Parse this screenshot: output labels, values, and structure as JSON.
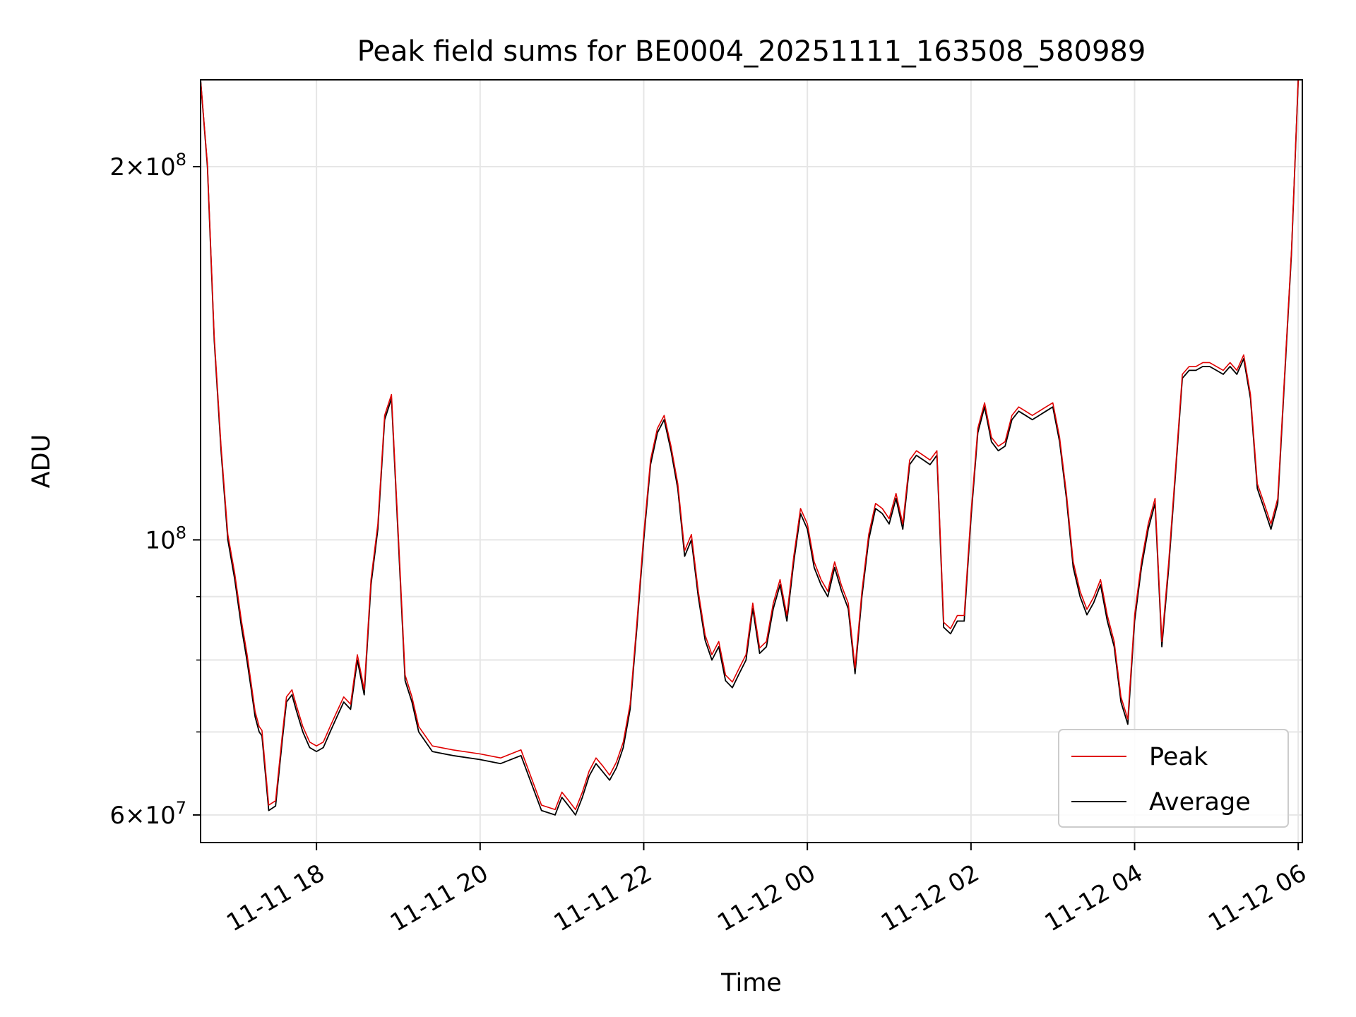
{
  "chart_data": {
    "type": "line",
    "title": "Peak field sums for BE0004_20251111_163508_580989",
    "xlabel": "Time",
    "ylabel": "ADU",
    "y_scale": "log",
    "ylim": [
      57000000,
      235000000
    ],
    "xlim": [
      "2025-11-11 16:35",
      "2025-11-12 06:03"
    ],
    "grid": true,
    "legend_position": "lower-right",
    "x_ticks": [
      {
        "value": "2025-11-11 18:00",
        "label": "11-11 18"
      },
      {
        "value": "2025-11-11 20:00",
        "label": "11-11 20"
      },
      {
        "value": "2025-11-11 22:00",
        "label": "11-11 22"
      },
      {
        "value": "2025-11-12 00:00",
        "label": "11-12 00"
      },
      {
        "value": "2025-11-12 02:00",
        "label": "11-12 02"
      },
      {
        "value": "2025-11-12 04:00",
        "label": "11-12 04"
      },
      {
        "value": "2025-11-12 06:00",
        "label": "11-12 06"
      }
    ],
    "y_major_ticks": [
      {
        "value": 200000000,
        "mantissa": "2",
        "exponent": "8"
      },
      {
        "value": 100000000,
        "mantissa": "",
        "exponent": "8"
      },
      {
        "value": 60000000,
        "mantissa": "6",
        "exponent": "7"
      }
    ],
    "y_minor_ticks": [
      70000000,
      80000000,
      90000000
    ],
    "series": [
      {
        "name": "Average",
        "color": "#000000",
        "x": [
          "2025-11-11 16:35",
          "2025-11-11 16:40",
          "2025-11-11 16:45",
          "2025-11-11 16:50",
          "2025-11-11 16:55",
          "2025-11-11 17:00",
          "2025-11-11 17:05",
          "2025-11-11 17:09",
          "2025-11-11 17:12",
          "2025-11-11 17:15",
          "2025-11-11 17:18",
          "2025-11-11 17:20",
          "2025-11-11 17:25",
          "2025-11-11 17:30",
          "2025-11-11 17:35",
          "2025-11-11 17:38",
          "2025-11-11 17:42",
          "2025-11-11 17:45",
          "2025-11-11 17:50",
          "2025-11-11 17:55",
          "2025-11-11 18:00",
          "2025-11-11 18:05",
          "2025-11-11 18:10",
          "2025-11-11 18:15",
          "2025-11-11 18:20",
          "2025-11-11 18:25",
          "2025-11-11 18:30",
          "2025-11-11 18:35",
          "2025-11-11 18:40",
          "2025-11-11 18:45",
          "2025-11-11 18:50",
          "2025-11-11 18:55",
          "2025-11-11 19:00",
          "2025-11-11 19:05",
          "2025-11-11 19:10",
          "2025-11-11 19:15",
          "2025-11-11 19:25",
          "2025-11-11 19:40",
          "2025-11-11 20:00",
          "2025-11-11 20:15",
          "2025-11-11 20:30",
          "2025-11-11 20:45",
          "2025-11-11 20:55",
          "2025-11-11 21:00",
          "2025-11-11 21:05",
          "2025-11-11 21:10",
          "2025-11-11 21:15",
          "2025-11-11 21:20",
          "2025-11-11 21:25",
          "2025-11-11 21:30",
          "2025-11-11 21:35",
          "2025-11-11 21:40",
          "2025-11-11 21:45",
          "2025-11-11 21:50",
          "2025-11-11 21:55",
          "2025-11-11 22:00",
          "2025-11-11 22:05",
          "2025-11-11 22:10",
          "2025-11-11 22:15",
          "2025-11-11 22:20",
          "2025-11-11 22:25",
          "2025-11-11 22:30",
          "2025-11-11 22:35",
          "2025-11-11 22:40",
          "2025-11-11 22:45",
          "2025-11-11 22:50",
          "2025-11-11 22:55",
          "2025-11-11 23:00",
          "2025-11-11 23:05",
          "2025-11-11 23:10",
          "2025-11-11 23:15",
          "2025-11-11 23:20",
          "2025-11-11 23:25",
          "2025-11-11 23:30",
          "2025-11-11 23:35",
          "2025-11-11 23:40",
          "2025-11-11 23:45",
          "2025-11-11 23:50",
          "2025-11-11 23:55",
          "2025-11-12 00:00",
          "2025-11-12 00:05",
          "2025-11-12 00:10",
          "2025-11-12 00:15",
          "2025-11-12 00:20",
          "2025-11-12 00:25",
          "2025-11-12 00:30",
          "2025-11-12 00:35",
          "2025-11-12 00:40",
          "2025-11-12 00:45",
          "2025-11-12 00:50",
          "2025-11-12 00:55",
          "2025-11-12 01:00",
          "2025-11-12 01:05",
          "2025-11-12 01:10",
          "2025-11-12 01:15",
          "2025-11-12 01:20",
          "2025-11-12 01:25",
          "2025-11-12 01:30",
          "2025-11-12 01:35",
          "2025-11-12 01:40",
          "2025-11-12 01:45",
          "2025-11-12 01:50",
          "2025-11-12 01:55",
          "2025-11-12 02:00",
          "2025-11-12 02:05",
          "2025-11-12 02:10",
          "2025-11-12 02:15",
          "2025-11-12 02:20",
          "2025-11-12 02:25",
          "2025-11-12 02:30",
          "2025-11-12 02:35",
          "2025-11-12 02:40",
          "2025-11-12 02:45",
          "2025-11-12 02:50",
          "2025-11-12 02:55",
          "2025-11-12 03:00",
          "2025-11-12 03:05",
          "2025-11-12 03:10",
          "2025-11-12 03:15",
          "2025-11-12 03:20",
          "2025-11-12 03:25",
          "2025-11-12 03:30",
          "2025-11-12 03:35",
          "2025-11-12 03:40",
          "2025-11-12 03:45",
          "2025-11-12 03:50",
          "2025-11-12 03:55",
          "2025-11-12 04:00",
          "2025-11-12 04:05",
          "2025-11-12 04:10",
          "2025-11-12 04:15",
          "2025-11-12 04:20",
          "2025-11-12 04:25",
          "2025-11-12 04:30",
          "2025-11-12 04:35",
          "2025-11-12 04:40",
          "2025-11-12 04:45",
          "2025-11-12 04:50",
          "2025-11-12 04:55",
          "2025-11-12 05:00",
          "2025-11-12 05:05",
          "2025-11-12 05:10",
          "2025-11-12 05:15",
          "2025-11-12 05:20",
          "2025-11-12 05:25",
          "2025-11-12 05:30",
          "2025-11-12 05:35",
          "2025-11-12 05:40",
          "2025-11-12 05:45",
          "2025-11-12 05:50",
          "2025-11-12 05:55",
          "2025-11-12 06:00"
        ],
        "values": [
          235000000,
          200000000,
          145000000,
          118000000,
          100000000,
          93000000,
          85000000,
          80000000,
          76000000,
          72000000,
          70000000,
          69500000,
          60500000,
          61000000,
          69000000,
          74000000,
          75000000,
          73000000,
          70000000,
          68000000,
          67500000,
          68000000,
          70000000,
          72000000,
          74000000,
          73000000,
          80000000,
          75000000,
          92000000,
          102000000,
          125000000,
          130000000,
          100000000,
          77000000,
          74000000,
          70000000,
          67500000,
          67000000,
          66500000,
          66000000,
          67000000,
          60500000,
          60000000,
          62000000,
          61000000,
          60000000,
          62000000,
          64500000,
          66000000,
          65000000,
          64000000,
          65500000,
          68000000,
          73000000,
          85000000,
          100000000,
          115000000,
          122000000,
          125000000,
          118000000,
          110000000,
          97000000,
          100000000,
          90000000,
          83000000,
          80000000,
          82000000,
          77000000,
          76000000,
          78000000,
          80000000,
          88000000,
          81000000,
          82000000,
          88000000,
          92000000,
          86000000,
          96000000,
          105000000,
          102000000,
          95000000,
          92000000,
          90000000,
          95000000,
          91000000,
          88000000,
          78000000,
          90000000,
          100000000,
          106000000,
          105000000,
          103000000,
          108000000,
          102000000,
          115000000,
          117000000,
          116000000,
          115000000,
          117000000,
          85000000,
          84000000,
          86000000,
          86000000,
          104000000,
          122000000,
          128000000,
          120000000,
          118000000,
          119000000,
          125000000,
          127000000,
          126000000,
          125000000,
          126000000,
          127000000,
          128000000,
          120000000,
          108000000,
          95000000,
          90000000,
          87000000,
          89000000,
          92000000,
          86000000,
          82000000,
          74000000,
          71000000,
          86000000,
          95000000,
          102000000,
          107000000,
          82000000,
          95000000,
          113000000,
          135000000,
          137000000,
          137000000,
          138000000,
          138000000,
          137000000,
          136000000,
          138000000,
          136000000,
          140000000,
          130000000,
          110000000,
          106000000,
          102000000,
          107000000,
          135000000,
          170000000,
          235000000
        ]
      },
      {
        "name": "Peak",
        "color": "#e00000",
        "x": [
          "2025-11-11 16:35",
          "2025-11-11 16:40",
          "2025-11-11 16:45",
          "2025-11-11 16:50",
          "2025-11-11 16:55",
          "2025-11-11 17:00",
          "2025-11-11 17:05",
          "2025-11-11 17:09",
          "2025-11-11 17:12",
          "2025-11-11 17:15",
          "2025-11-11 17:18",
          "2025-11-11 17:20",
          "2025-11-11 17:25",
          "2025-11-11 17:30",
          "2025-11-11 17:35",
          "2025-11-11 17:38",
          "2025-11-11 17:42",
          "2025-11-11 17:45",
          "2025-11-11 17:50",
          "2025-11-11 17:55",
          "2025-11-11 18:00",
          "2025-11-11 18:05",
          "2025-11-11 18:10",
          "2025-11-11 18:15",
          "2025-11-11 18:20",
          "2025-11-11 18:25",
          "2025-11-11 18:30",
          "2025-11-11 18:35",
          "2025-11-11 18:40",
          "2025-11-11 18:45",
          "2025-11-11 18:50",
          "2025-11-11 18:55",
          "2025-11-11 19:00",
          "2025-11-11 19:05",
          "2025-11-11 19:10",
          "2025-11-11 19:15",
          "2025-11-11 19:25",
          "2025-11-11 19:40",
          "2025-11-11 20:00",
          "2025-11-11 20:15",
          "2025-11-11 20:30",
          "2025-11-11 20:45",
          "2025-11-11 20:55",
          "2025-11-11 21:00",
          "2025-11-11 21:05",
          "2025-11-11 21:10",
          "2025-11-11 21:15",
          "2025-11-11 21:20",
          "2025-11-11 21:25",
          "2025-11-11 21:30",
          "2025-11-11 21:35",
          "2025-11-11 21:40",
          "2025-11-11 21:45",
          "2025-11-11 21:50",
          "2025-11-11 21:55",
          "2025-11-11 22:00",
          "2025-11-11 22:05",
          "2025-11-11 22:10",
          "2025-11-11 22:15",
          "2025-11-11 22:20",
          "2025-11-11 22:25",
          "2025-11-11 22:30",
          "2025-11-11 22:35",
          "2025-11-11 22:40",
          "2025-11-11 22:45",
          "2025-11-11 22:50",
          "2025-11-11 22:55",
          "2025-11-11 23:00",
          "2025-11-11 23:05",
          "2025-11-11 23:10",
          "2025-11-11 23:15",
          "2025-11-11 23:20",
          "2025-11-11 23:25",
          "2025-11-11 23:30",
          "2025-11-11 23:35",
          "2025-11-11 23:40",
          "2025-11-11 23:45",
          "2025-11-11 23:50",
          "2025-11-11 23:55",
          "2025-11-12 00:00",
          "2025-11-12 00:05",
          "2025-11-12 00:10",
          "2025-11-12 00:15",
          "2025-11-12 00:20",
          "2025-11-12 00:25",
          "2025-11-12 00:30",
          "2025-11-12 00:35",
          "2025-11-12 00:40",
          "2025-11-12 00:45",
          "2025-11-12 00:50",
          "2025-11-12 00:55",
          "2025-11-12 01:00",
          "2025-11-12 01:05",
          "2025-11-12 01:10",
          "2025-11-12 01:15",
          "2025-11-12 01:20",
          "2025-11-12 01:25",
          "2025-11-12 01:30",
          "2025-11-12 01:35",
          "2025-11-12 01:40",
          "2025-11-12 01:45",
          "2025-11-12 01:50",
          "2025-11-12 01:55",
          "2025-11-12 02:00",
          "2025-11-12 02:05",
          "2025-11-12 02:10",
          "2025-11-12 02:15",
          "2025-11-12 02:20",
          "2025-11-12 02:25",
          "2025-11-12 02:30",
          "2025-11-12 02:35",
          "2025-11-12 02:40",
          "2025-11-12 02:45",
          "2025-11-12 02:50",
          "2025-11-12 02:55",
          "2025-11-12 03:00",
          "2025-11-12 03:05",
          "2025-11-12 03:10",
          "2025-11-12 03:15",
          "2025-11-12 03:20",
          "2025-11-12 03:25",
          "2025-11-12 03:30",
          "2025-11-12 03:35",
          "2025-11-12 03:40",
          "2025-11-12 03:45",
          "2025-11-12 03:50",
          "2025-11-12 03:55",
          "2025-11-12 04:00",
          "2025-11-12 04:05",
          "2025-11-12 04:10",
          "2025-11-12 04:15",
          "2025-11-12 04:20",
          "2025-11-12 04:25",
          "2025-11-12 04:30",
          "2025-11-12 04:35",
          "2025-11-12 04:40",
          "2025-11-12 04:45",
          "2025-11-12 04:50",
          "2025-11-12 04:55",
          "2025-11-12 05:00",
          "2025-11-12 05:05",
          "2025-11-12 05:10",
          "2025-11-12 05:15",
          "2025-11-12 05:20",
          "2025-11-12 05:25",
          "2025-11-12 05:30",
          "2025-11-12 05:35",
          "2025-11-12 05:40",
          "2025-11-12 05:45",
          "2025-11-12 05:50",
          "2025-11-12 05:55",
          "2025-11-12 06:00"
        ],
        "values": [
          235000000,
          201000000,
          146000000,
          119000000,
          101000000,
          94000000,
          86000000,
          81000000,
          76800000,
          72700000,
          70700000,
          70200000,
          61100000,
          61600000,
          69700000,
          74700000,
          75700000,
          73700000,
          70700000,
          68700000,
          68200000,
          68700000,
          70700000,
          72700000,
          74700000,
          73700000,
          80800000,
          75700000,
          92900000,
          103000000,
          126000000,
          131000000,
          101000000,
          77800000,
          74700000,
          70700000,
          68200000,
          67700000,
          67200000,
          66700000,
          67700000,
          61100000,
          60600000,
          62600000,
          61600000,
          60600000,
          62600000,
          65100000,
          66700000,
          65700000,
          64600000,
          66200000,
          68700000,
          73700000,
          85800000,
          101000000,
          116000000,
          123000000,
          126000000,
          119000000,
          111000000,
          98000000,
          101000000,
          90900000,
          83800000,
          80800000,
          82800000,
          77800000,
          76800000,
          78800000,
          80800000,
          88900000,
          81800000,
          82800000,
          88900000,
          92900000,
          86900000,
          97000000,
          106000000,
          103000000,
          96000000,
          92900000,
          90900000,
          96000000,
          91900000,
          88900000,
          78800000,
          90900000,
          101000000,
          107000000,
          106000000,
          104000000,
          109000000,
          103000000,
          116000000,
          118000000,
          117000000,
          116000000,
          118000000,
          85800000,
          84800000,
          86900000,
          86900000,
          105000000,
          123000000,
          129000000,
          121000000,
          119000000,
          120000000,
          126000000,
          128000000,
          127000000,
          126000000,
          127000000,
          128000000,
          129000000,
          121000000,
          109000000,
          96000000,
          90900000,
          87900000,
          89900000,
          92900000,
          86900000,
          82800000,
          74700000,
          71700000,
          86900000,
          96000000,
          103000000,
          108000000,
          82800000,
          96000000,
          114000000,
          136000000,
          138000000,
          138000000,
          139000000,
          139000000,
          138000000,
          137000000,
          139000000,
          137000000,
          141000000,
          131000000,
          111000000,
          107000000,
          103000000,
          108000000,
          136000000,
          171000000,
          235000000
        ]
      }
    ]
  }
}
